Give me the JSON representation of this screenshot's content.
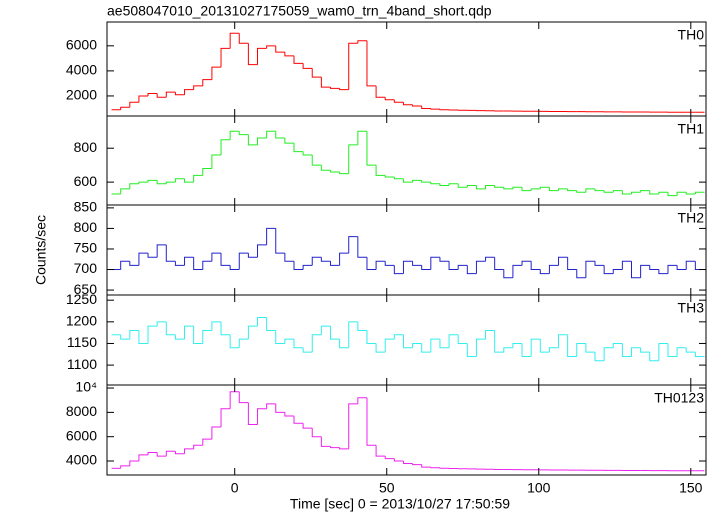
{
  "title": "ae508047010_20131027175059_wam0_trn_4band_short.qdp",
  "xlabel": "Time [sec] 0 = 2013/10/27 17:50:59",
  "ylabel": "Counts/sec",
  "chart_data": [
    {
      "type": "step",
      "name": "TH0",
      "color": "#ff0000",
      "xlim": [
        -42,
        155
      ],
      "xticks": [
        0,
        50,
        100,
        150
      ],
      "ylim": [
        400,
        7900
      ],
      "yticks": [
        2000,
        4000,
        6000
      ],
      "x": [
        -39,
        -36,
        -33,
        -30,
        -27,
        -24,
        -21,
        -18,
        -15,
        -12,
        -9,
        -6,
        -3,
        0,
        3,
        6,
        9,
        12,
        15,
        18,
        21,
        24,
        27,
        30,
        33,
        36,
        39,
        42,
        45,
        48,
        51,
        54,
        57,
        60,
        63,
        66,
        69,
        72,
        75,
        78,
        81,
        84,
        87,
        90,
        93,
        96,
        99,
        102,
        105,
        108,
        111,
        114,
        117,
        120,
        123,
        126,
        129,
        132,
        135,
        138,
        141,
        144,
        147,
        150,
        153
      ],
      "values": [
        900,
        1100,
        1500,
        2000,
        2200,
        1900,
        2300,
        2100,
        2500,
        2800,
        3300,
        4300,
        5800,
        7000,
        6200,
        4500,
        5800,
        6000,
        5500,
        5200,
        4600,
        4200,
        3500,
        2700,
        2600,
        2500,
        6200,
        6400,
        2800,
        1900,
        1700,
        1500,
        1300,
        1200,
        1000,
        950,
        900,
        880,
        860,
        850,
        830,
        820,
        800,
        800,
        790,
        780,
        780,
        770,
        760,
        760,
        750,
        750,
        740,
        740,
        730,
        730,
        720,
        720,
        720,
        710,
        710,
        700,
        700,
        700,
        700
      ]
    },
    {
      "type": "step",
      "name": "TH1",
      "color": "#22ee22",
      "xlim": [
        -42,
        155
      ],
      "xticks": [
        0,
        50,
        100,
        150
      ],
      "ylim": [
        465,
        990
      ],
      "yticks": [
        600,
        800
      ],
      "x": [
        -39,
        -36,
        -33,
        -30,
        -27,
        -24,
        -21,
        -18,
        -15,
        -12,
        -9,
        -6,
        -3,
        0,
        3,
        6,
        9,
        12,
        15,
        18,
        21,
        24,
        27,
        30,
        33,
        36,
        39,
        42,
        45,
        48,
        51,
        54,
        57,
        60,
        63,
        66,
        69,
        72,
        75,
        78,
        81,
        84,
        87,
        90,
        93,
        96,
        99,
        102,
        105,
        108,
        111,
        114,
        117,
        120,
        123,
        126,
        129,
        132,
        135,
        138,
        141,
        144,
        147,
        150,
        153
      ],
      "values": [
        530,
        560,
        590,
        600,
        610,
        590,
        600,
        620,
        600,
        640,
        680,
        760,
        850,
        900,
        880,
        820,
        860,
        900,
        860,
        830,
        780,
        760,
        700,
        670,
        660,
        650,
        820,
        900,
        700,
        640,
        630,
        620,
        600,
        610,
        600,
        590,
        580,
        590,
        570,
        580,
        560,
        580,
        570,
        560,
        570,
        550,
        560,
        570,
        550,
        560,
        550,
        540,
        560,
        550,
        540,
        550,
        530,
        540,
        550,
        530,
        540,
        520,
        540,
        530,
        540
      ]
    },
    {
      "type": "step",
      "name": "TH2",
      "color": "#2222cc",
      "xlim": [
        -42,
        155
      ],
      "xticks": [
        0,
        50,
        100,
        150
      ],
      "ylim": [
        638,
        857
      ],
      "yticks": [
        650,
        700,
        750,
        800,
        850
      ],
      "x": [
        -39,
        -36,
        -33,
        -30,
        -27,
        -24,
        -21,
        -18,
        -15,
        -12,
        -9,
        -6,
        -3,
        0,
        3,
        6,
        9,
        12,
        15,
        18,
        21,
        24,
        27,
        30,
        33,
        36,
        39,
        42,
        45,
        48,
        51,
        54,
        57,
        60,
        63,
        66,
        69,
        72,
        75,
        78,
        81,
        84,
        87,
        90,
        93,
        96,
        99,
        102,
        105,
        108,
        111,
        114,
        117,
        120,
        123,
        126,
        129,
        132,
        135,
        138,
        141,
        144,
        147,
        150,
        153
      ],
      "values": [
        700,
        720,
        710,
        740,
        730,
        760,
        720,
        710,
        730,
        700,
        720,
        740,
        710,
        700,
        740,
        730,
        760,
        800,
        740,
        720,
        700,
        710,
        730,
        720,
        710,
        740,
        780,
        730,
        700,
        720,
        710,
        690,
        720,
        710,
        700,
        730,
        720,
        700,
        710,
        690,
        720,
        730,
        700,
        680,
        710,
        720,
        700,
        690,
        710,
        730,
        700,
        680,
        720,
        710,
        690,
        700,
        720,
        680,
        710,
        700,
        690,
        710,
        700,
        720,
        700
      ]
    },
    {
      "type": "step",
      "name": "TH3",
      "color": "#33eeee",
      "xlim": [
        -42,
        155
      ],
      "xticks": [
        0,
        50,
        100,
        150
      ],
      "ylim": [
        1054,
        1262
      ],
      "yticks": [
        1100,
        1150,
        1200,
        1250
      ],
      "x": [
        -39,
        -36,
        -33,
        -30,
        -27,
        -24,
        -21,
        -18,
        -15,
        -12,
        -9,
        -6,
        -3,
        0,
        3,
        6,
        9,
        12,
        15,
        18,
        21,
        24,
        27,
        30,
        33,
        36,
        39,
        42,
        45,
        48,
        51,
        54,
        57,
        60,
        63,
        66,
        69,
        72,
        75,
        78,
        81,
        84,
        87,
        90,
        93,
        96,
        99,
        102,
        105,
        108,
        111,
        114,
        117,
        120,
        123,
        126,
        129,
        132,
        135,
        138,
        141,
        144,
        147,
        150,
        153
      ],
      "values": [
        1170,
        1160,
        1180,
        1150,
        1190,
        1200,
        1170,
        1160,
        1190,
        1150,
        1180,
        1200,
        1170,
        1140,
        1160,
        1190,
        1210,
        1180,
        1150,
        1160,
        1140,
        1130,
        1170,
        1190,
        1160,
        1140,
        1200,
        1180,
        1150,
        1130,
        1160,
        1170,
        1140,
        1150,
        1130,
        1160,
        1140,
        1170,
        1150,
        1120,
        1160,
        1180,
        1130,
        1140,
        1150,
        1120,
        1160,
        1130,
        1140,
        1170,
        1120,
        1150,
        1130,
        1110,
        1140,
        1150,
        1120,
        1140,
        1130,
        1110,
        1150,
        1120,
        1140,
        1130,
        1120
      ]
    },
    {
      "type": "step",
      "name": "TH0123",
      "color": "#ee22ee",
      "xlim": [
        -42,
        155
      ],
      "xticks": [
        0,
        50,
        100,
        150
      ],
      "ylim": [
        2850,
        10250
      ],
      "yticks": [
        4000,
        6000,
        8000,
        {
          "value": 10000,
          "label": "10⁴"
        }
      ],
      "x": [
        -39,
        -36,
        -33,
        -30,
        -27,
        -24,
        -21,
        -18,
        -15,
        -12,
        -9,
        -6,
        -3,
        0,
        3,
        6,
        9,
        12,
        15,
        18,
        21,
        24,
        27,
        30,
        33,
        36,
        39,
        42,
        45,
        48,
        51,
        54,
        57,
        60,
        63,
        66,
        69,
        72,
        75,
        78,
        81,
        84,
        87,
        90,
        93,
        96,
        99,
        102,
        105,
        108,
        111,
        114,
        117,
        120,
        123,
        126,
        129,
        132,
        135,
        138,
        141,
        144,
        147,
        150,
        153
      ],
      "values": [
        3400,
        3600,
        4000,
        4500,
        4700,
        4400,
        4800,
        4600,
        5000,
        5300,
        5800,
        6800,
        8300,
        9700,
        8800,
        7000,
        8300,
        8700,
        8000,
        7700,
        7100,
        6700,
        6000,
        5200,
        5100,
        5000,
        8700,
        9200,
        5300,
        4400,
        4200,
        4000,
        3800,
        3700,
        3500,
        3450,
        3400,
        3380,
        3360,
        3350,
        3330,
        3320,
        3300,
        3300,
        3290,
        3280,
        3280,
        3270,
        3260,
        3260,
        3250,
        3250,
        3240,
        3240,
        3230,
        3230,
        3220,
        3220,
        3220,
        3210,
        3210,
        3200,
        3200,
        3200,
        3200
      ]
    }
  ]
}
